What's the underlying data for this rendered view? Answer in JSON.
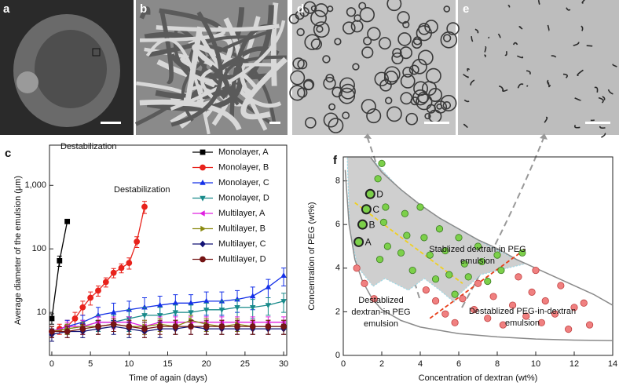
{
  "panel_labels": {
    "a": "a",
    "b": "b",
    "d": "d",
    "e": "e"
  },
  "chart_data": [
    {
      "type": "line",
      "panel_label": "c",
      "log_y": true,
      "xlabel": "Time of again (days)",
      "ylabel": "Average diameter of the emulsion (μm)",
      "xlim": [
        -0.3,
        30.4
      ],
      "ylim": [
        2.1,
        4300
      ],
      "xticks": [
        0,
        5,
        10,
        15,
        20,
        25,
        30
      ],
      "yticks": [
        10,
        100,
        {
          "value": 1000,
          "label": "1,000"
        }
      ],
      "legend": "upper right",
      "annotations": [
        "Destabilization",
        "Destabilization"
      ],
      "series": [
        {
          "name": "Monolayer, A",
          "color": "#000000",
          "marker": "square",
          "x": [
            0,
            1,
            2
          ],
          "values": [
            8,
            65,
            270
          ],
          "errors": [
            1.5,
            12,
            10
          ]
        },
        {
          "name": "Monolayer, B",
          "color": "#e8231c",
          "marker": "circle",
          "x": [
            0,
            1,
            2,
            3,
            4,
            5,
            6,
            7,
            8,
            9,
            10,
            11,
            12
          ],
          "values": [
            5,
            5.5,
            6,
            8,
            12,
            17,
            22,
            30,
            42,
            50,
            60,
            130,
            460
          ],
          "errors": [
            1,
            1,
            1.5,
            2,
            3,
            4,
            4,
            5,
            7,
            8,
            12,
            25,
            100
          ]
        },
        {
          "name": "Monolayer, C",
          "color": "#1430e8",
          "marker": "triangle-up",
          "x": [
            0,
            2,
            4,
            6,
            8,
            10,
            12,
            14,
            16,
            18,
            20,
            22,
            24,
            26,
            28,
            30
          ],
          "values": [
            5,
            6,
            7,
            9,
            10,
            11,
            12,
            13,
            14,
            14,
            15,
            15,
            16,
            18,
            25,
            38
          ],
          "errors": [
            1,
            1.5,
            2,
            3,
            4,
            4,
            5,
            5,
            5,
            5,
            6,
            6,
            6,
            7,
            8,
            12
          ]
        },
        {
          "name": "Monolayer, D",
          "color": "#188a8a",
          "marker": "triangle-down",
          "x": [
            0,
            2,
            4,
            6,
            8,
            10,
            12,
            14,
            16,
            18,
            20,
            22,
            24,
            26,
            28,
            30
          ],
          "values": [
            5,
            5.5,
            6,
            7,
            7,
            8,
            9,
            9,
            10,
            10,
            11,
            11,
            12,
            12,
            13,
            15
          ],
          "errors": [
            1,
            1,
            1.5,
            2,
            2,
            3,
            3,
            3,
            3,
            3,
            3,
            4,
            4,
            4,
            4,
            5
          ]
        },
        {
          "name": "Multilayer, A",
          "color": "#e020e0",
          "marker": "triangle-left",
          "x": [
            0,
            2,
            4,
            6,
            8,
            10,
            12,
            14,
            16,
            18,
            20,
            22,
            24,
            26,
            28,
            30
          ],
          "values": [
            5,
            6,
            6,
            7,
            7,
            7,
            6,
            7,
            7,
            7,
            7,
            7,
            7,
            7,
            7,
            7
          ],
          "errors": [
            1,
            1,
            1.5,
            1.5,
            1.5,
            1.5,
            1.5,
            1.5,
            1.5,
            1.5,
            1.5,
            1.5,
            1.5,
            1.5,
            1.5,
            1.5
          ]
        },
        {
          "name": "Multilayer, B",
          "color": "#8a8a10",
          "marker": "triangle-right",
          "x": [
            0,
            2,
            4,
            6,
            8,
            10,
            12,
            14,
            16,
            18,
            20,
            22,
            24,
            26,
            28,
            30
          ],
          "values": [
            5,
            5.5,
            6,
            6,
            6.5,
            6,
            6,
            6.5,
            6,
            7.5,
            6.5,
            6,
            6.5,
            6,
            6,
            6
          ],
          "errors": [
            1,
            1,
            1,
            1.5,
            1.5,
            1.5,
            1.5,
            1.5,
            1.5,
            1.5,
            1.5,
            1.5,
            1.5,
            1.5,
            1.5,
            1.5
          ]
        },
        {
          "name": "Multilayer, C",
          "color": "#121274",
          "marker": "diamond",
          "x": [
            0,
            2,
            4,
            6,
            8,
            10,
            12,
            14,
            16,
            18,
            20,
            22,
            24,
            26,
            28,
            30
          ],
          "values": [
            4.5,
            5,
            5,
            5.5,
            6,
            5.5,
            5,
            5.5,
            5.5,
            6,
            5.5,
            5.5,
            5.5,
            5.5,
            5.5,
            5.5
          ],
          "errors": [
            1,
            1,
            1,
            1,
            1.5,
            1.5,
            1,
            1.5,
            1,
            1.5,
            1,
            1,
            1,
            1,
            1,
            1
          ]
        },
        {
          "name": "Multilayer, D",
          "color": "#741414",
          "marker": "circle",
          "x": [
            0,
            2,
            4,
            6,
            8,
            10,
            12,
            14,
            16,
            18,
            20,
            22,
            24,
            26,
            28,
            30
          ],
          "values": [
            5,
            5,
            5.5,
            6,
            6.5,
            6,
            5.5,
            6,
            6,
            6,
            6,
            6,
            6,
            6,
            6,
            6
          ],
          "errors": [
            1,
            1,
            1,
            1.5,
            1.5,
            1.5,
            1.5,
            1.5,
            1.5,
            1.5,
            1.5,
            1.5,
            1.5,
            1.5,
            1.5,
            1.5
          ]
        }
      ]
    },
    {
      "type": "scatter",
      "panel_label": "f",
      "xlabel": "Concentration of dextran (wt%)",
      "ylabel": "Concentration of PEG (wt%)",
      "xlim": [
        0,
        14
      ],
      "ylim": [
        0,
        9.1
      ],
      "xticks": [
        0,
        2,
        4,
        6,
        8,
        10,
        12,
        14
      ],
      "yticks": [
        0,
        2,
        4,
        6,
        8
      ],
      "annotations": [
        [
          "Stablized dextran-in PEG",
          "emulsion"
        ],
        [
          "Destablized",
          "dextran-in PEG",
          "emulsion"
        ],
        [
          "Destablized PEG-in-dextran",
          "emulsion"
        ]
      ],
      "curves": [
        {
          "color": "#8a8a8a",
          "dash": false,
          "x": [
            1.4,
            2,
            3,
            4,
            5,
            6,
            7,
            8,
            9,
            10,
            11,
            12,
            13,
            14
          ],
          "values": [
            9.1,
            8.4,
            7.6,
            6.9,
            6.3,
            5.8,
            5.3,
            4.9,
            4.4,
            4.0,
            3.6,
            3.2,
            2.8,
            2.3
          ]
        },
        {
          "color": "#8a8a8a",
          "dash": false,
          "x": [
            0.1,
            0.3,
            0.6,
            1,
            1.5,
            2,
            3,
            4,
            6,
            8,
            10,
            12,
            14
          ],
          "values": [
            8.5,
            6,
            4.4,
            3.4,
            2.6,
            2.1,
            1.6,
            1.3,
            1.0,
            0.85,
            0.75,
            0.7,
            0.68
          ]
        },
        {
          "color": "#f0d020",
          "dash": true,
          "x": [
            0.6,
            6.2
          ],
          "values": [
            7.0,
            3.3
          ]
        },
        {
          "color": "#e8401c",
          "dash": true,
          "x": [
            4.5,
            9.5
          ],
          "values": [
            1.7,
            4.9
          ]
        }
      ],
      "points": [
        {
          "color": "#7cd04a",
          "edge": "#3a7a20",
          "x": [
            2.0,
            1.8,
            2.2,
            2.1,
            2.3,
            1.9,
            3.2,
            3.3,
            3.0,
            3.6,
            4.0,
            4.2,
            4.5,
            4.8,
            5.0,
            5.3,
            5.5,
            5.8,
            6.0,
            6.3,
            6.5,
            7.0,
            7.2,
            7.5,
            8.0,
            8.2,
            9.3
          ],
          "values": [
            8.8,
            8.1,
            6.8,
            6.1,
            5.0,
            4.4,
            6.5,
            5.5,
            4.7,
            3.9,
            6.8,
            5.4,
            4.6,
            3.5,
            5.8,
            4.8,
            3.7,
            2.8,
            5.4,
            4.2,
            3.6,
            5.0,
            4.3,
            3.4,
            4.6,
            3.9,
            4.7
          ]
        },
        {
          "color": "#7cd04a",
          "edge": "#222222",
          "x": [
            0.8,
            1.0,
            1.2,
            1.4
          ],
          "values": [
            5.2,
            6.0,
            6.7,
            7.4
          ],
          "labels": [
            "A",
            "B",
            "C",
            "D"
          ]
        },
        {
          "color": "#f08080",
          "edge": "#c04040",
          "x": [
            0.7,
            1.1,
            1.6,
            4.3,
            4.8,
            5.3,
            5.8,
            6.2,
            6.8,
            7.0,
            7.5,
            7.8,
            8.3,
            8.8,
            9.1,
            9.5,
            9.8,
            10.0,
            10.3,
            10.5,
            11.0,
            11.3,
            11.7,
            12.0,
            12.5,
            12.8
          ],
          "values": [
            4.0,
            3.3,
            2.6,
            3.0,
            2.5,
            1.9,
            1.5,
            2.6,
            2.1,
            3.3,
            1.7,
            2.7,
            1.4,
            2.3,
            3.6,
            1.8,
            2.9,
            3.9,
            1.5,
            2.5,
            1.9,
            3.2,
            1.2,
            2.2,
            2.4,
            1.4
          ]
        }
      ]
    }
  ]
}
